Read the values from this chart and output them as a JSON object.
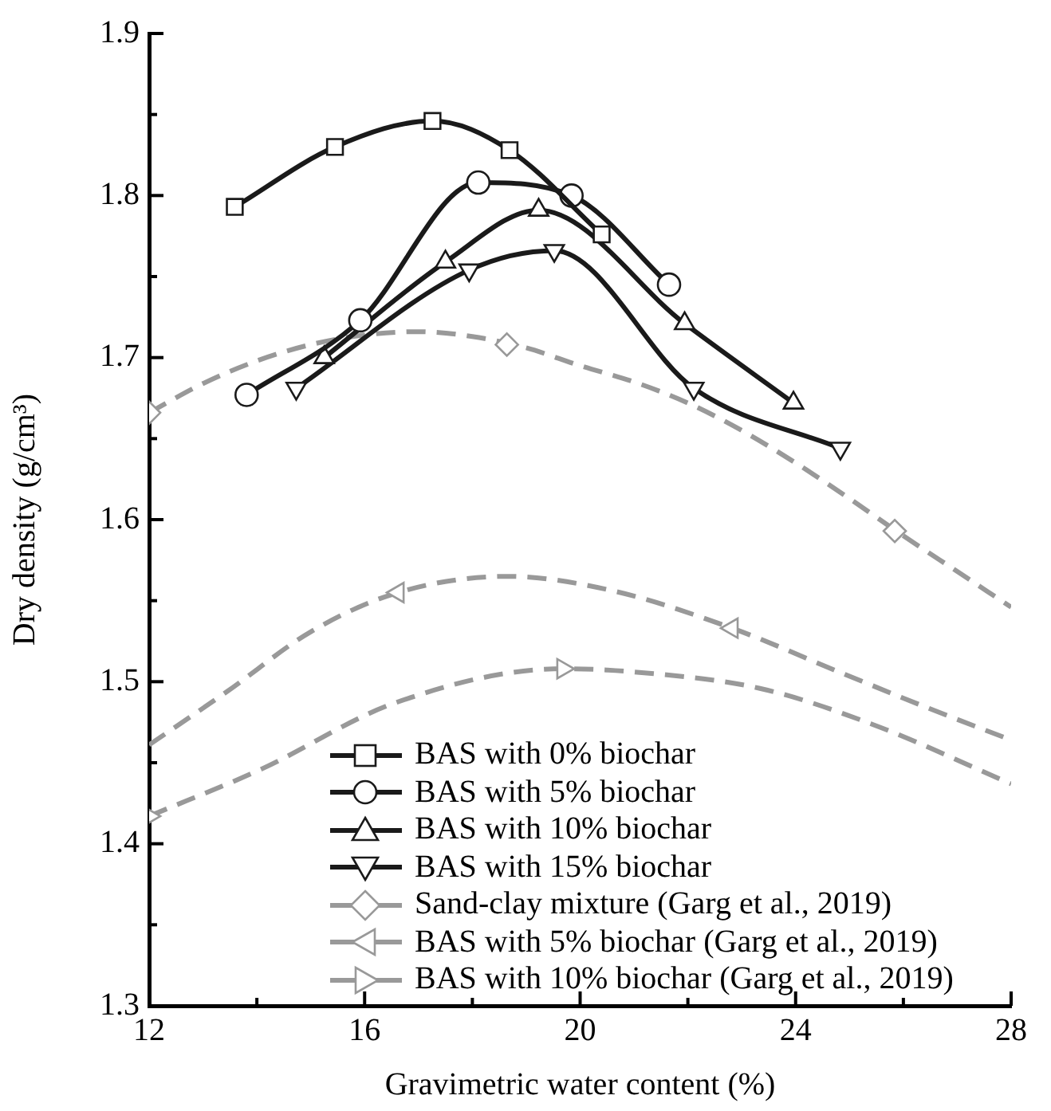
{
  "chart_data": {
    "type": "line",
    "xlabel": "Gravimetric water content (%)",
    "ylabel": "Dry density (g/cm³)",
    "xlim": [
      12,
      28
    ],
    "xticks": [
      12,
      {
        "value": 14,
        "label": null
      },
      16,
      {
        "value": 18,
        "label": null
      },
      20,
      {
        "value": 22,
        "label": null
      },
      24,
      {
        "value": 26,
        "label": null
      },
      28
    ],
    "ylim": [
      1.3,
      1.9
    ],
    "yticks": [
      1.3,
      {
        "value": 1.35,
        "label": null
      },
      1.4,
      {
        "value": 1.45,
        "label": null
      },
      1.5,
      {
        "value": 1.55,
        "label": null
      },
      1.6,
      {
        "value": 1.65,
        "label": null
      },
      1.7,
      {
        "value": 1.75,
        "label": null
      },
      1.8,
      {
        "value": 1.85,
        "label": null
      },
      1.9
    ],
    "grid": false,
    "legend": "bottom",
    "series": [
      {
        "name": "BAS with 0% biochar",
        "color": "#1a1a1a",
        "marker": "square",
        "line_style": "solid",
        "x": [
          13.59,
          15.45,
          17.26,
          18.69,
          20.4
        ],
        "values": [
          1.793,
          1.83,
          1.846,
          1.828,
          1.776
        ]
      },
      {
        "name": "BAS with 5% biochar",
        "color": "#1a1a1a",
        "marker": "circle",
        "line_style": "solid",
        "x": [
          13.81,
          15.92,
          18.11,
          19.84,
          21.65
        ],
        "values": [
          1.677,
          1.723,
          1.808,
          1.8,
          1.745
        ]
      },
      {
        "name": "BAS with 10% biochar",
        "color": "#1a1a1a",
        "marker": "triangle",
        "line_style": "solid",
        "x": [
          15.25,
          17.5,
          19.23,
          21.94,
          23.96
        ],
        "values": [
          1.7,
          1.759,
          1.791,
          1.721,
          1.672
        ]
      },
      {
        "name": "BAS with 15% biochar",
        "color": "#1a1a1a",
        "marker": "triangle-down",
        "line_style": "solid",
        "x": [
          14.73,
          17.94,
          19.52,
          22.11,
          24.83
        ],
        "values": [
          1.681,
          1.754,
          1.766,
          1.681,
          1.644
        ]
      },
      {
        "name": "Sand-clay mixture (Garg et al., 2019)",
        "type": "scatter",
        "color": "#999999",
        "marker": "diamond",
        "line_style": "dashed",
        "x": [
          12,
          18.64,
          25.84
        ],
        "values": [
          1.666,
          1.708,
          1.593
        ]
      },
      {
        "name": "BAS with 5% biochar (Garg et al., 2019)",
        "type": "scatter",
        "color": "#999999",
        "marker": "triangle-left",
        "line_style": "dashed",
        "x": [
          16.62,
          22.82
        ],
        "values": [
          1.555,
          1.533
        ]
      },
      {
        "name": "BAS with 10% biochar (Garg et al., 2019)",
        "type": "scatter",
        "color": "#999999",
        "marker": "triangle-right",
        "line_style": "dashed",
        "x": [
          12,
          19.68
        ],
        "values": [
          1.417,
          1.508
        ]
      },
      {
        "color": "#999999",
        "marker": "none",
        "line_style": "dashed",
        "x": [
          12,
          13,
          14,
          15,
          16,
          17,
          18,
          19,
          20,
          21,
          22,
          23,
          24,
          25,
          26,
          27,
          28
        ],
        "values": [
          1.666,
          1.684,
          1.698,
          1.708,
          1.714,
          1.716,
          1.713,
          1.706,
          1.695,
          1.685,
          1.672,
          1.655,
          1.635,
          1.613,
          1.59,
          1.568,
          1.546
        ]
      },
      {
        "color": "#999999",
        "marker": "none",
        "line_style": "dashed",
        "x": [
          12,
          13.45,
          15.01,
          16.62,
          18.65,
          20.62,
          22.82,
          24.88,
          26.44,
          28
        ],
        "values": [
          1.461,
          1.494,
          1.531,
          1.555,
          1.565,
          1.556,
          1.533,
          1.505,
          1.484,
          1.464
        ]
      },
      {
        "color": "#999999",
        "marker": "none",
        "line_style": "dashed",
        "x": [
          12,
          14.08,
          16.57,
          19.68,
          21,
          23.32,
          25.4,
          28
        ],
        "values": [
          1.417,
          1.446,
          1.487,
          1.508,
          1.506,
          1.496,
          1.474,
          1.437
        ]
      }
    ]
  }
}
